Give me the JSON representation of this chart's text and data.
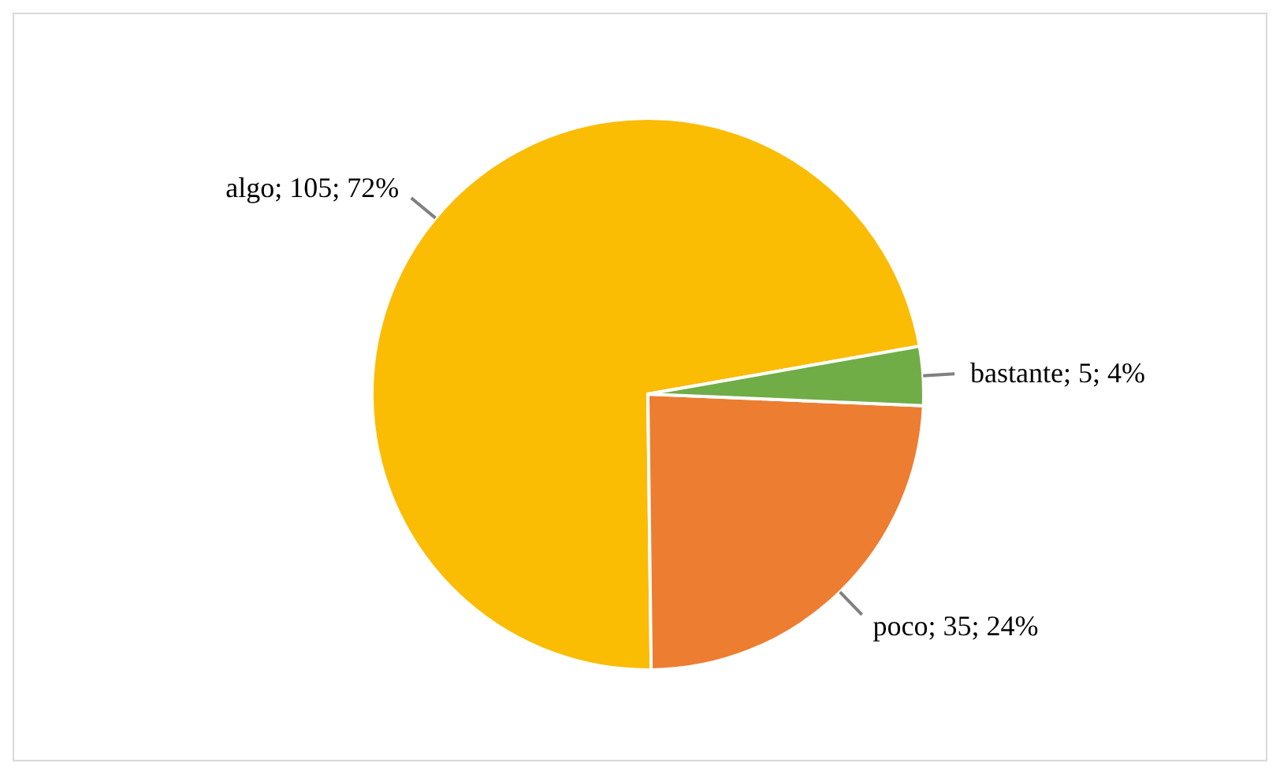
{
  "chart_data": {
    "type": "pie",
    "categories": [
      "algo",
      "poco",
      "bastante"
    ],
    "values": [
      105,
      35,
      5
    ],
    "value_labels": [
      "105; 72%",
      "35; 24%",
      "5; 4%"
    ],
    "colors": [
      "#fbbc04",
      "#ed7d31",
      "#70ad47"
    ]
  }
}
